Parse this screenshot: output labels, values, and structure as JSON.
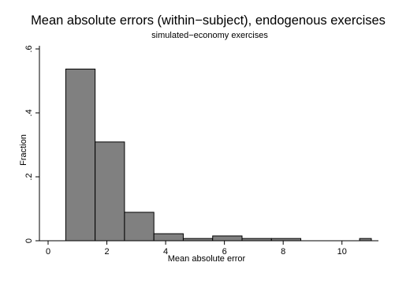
{
  "chart_data": {
    "type": "bar",
    "title": "Mean absolute errors (within−subject), endogenous exercises",
    "subtitle": "simulated−economy exercises",
    "xlabel": "Mean absolute error",
    "ylabel": "Fraction",
    "xlim": [
      0,
      11
    ],
    "ylim": [
      0,
      0.6
    ],
    "x_ticks": [
      0,
      2,
      4,
      6,
      8,
      10
    ],
    "x_tick_labels": [
      "0",
      "2",
      "4",
      "6",
      "8",
      "10"
    ],
    "y_ticks": [
      0,
      0.2,
      0.4,
      0.6
    ],
    "y_tick_labels": [
      "0",
      ".2",
      ".4",
      ".6"
    ],
    "bin_edges": [
      0.6,
      1.6,
      2.6,
      3.6,
      4.6,
      5.6,
      6.6,
      7.6,
      8.6,
      9.6,
      10.6,
      11.0
    ],
    "bins": [
      {
        "x0": 0.6,
        "x1": 1.6,
        "value": 0.537
      },
      {
        "x0": 1.6,
        "x1": 2.6,
        "value": 0.309
      },
      {
        "x0": 2.6,
        "x1": 3.6,
        "value": 0.089
      },
      {
        "x0": 3.6,
        "x1": 4.6,
        "value": 0.022
      },
      {
        "x0": 4.6,
        "x1": 5.6,
        "value": 0.007
      },
      {
        "x0": 5.6,
        "x1": 6.6,
        "value": 0.015
      },
      {
        "x0": 6.6,
        "x1": 7.6,
        "value": 0.007
      },
      {
        "x0": 7.6,
        "x1": 8.6,
        "value": 0.007
      },
      {
        "x0": 8.6,
        "x1": 9.6,
        "value": 0
      },
      {
        "x0": 9.6,
        "x1": 10.6,
        "value": 0
      },
      {
        "x0": 10.6,
        "x1": 11.0,
        "value": 0.007
      }
    ],
    "bar_color": "#808080",
    "bar_edge_color": "#000000",
    "grid": false
  }
}
